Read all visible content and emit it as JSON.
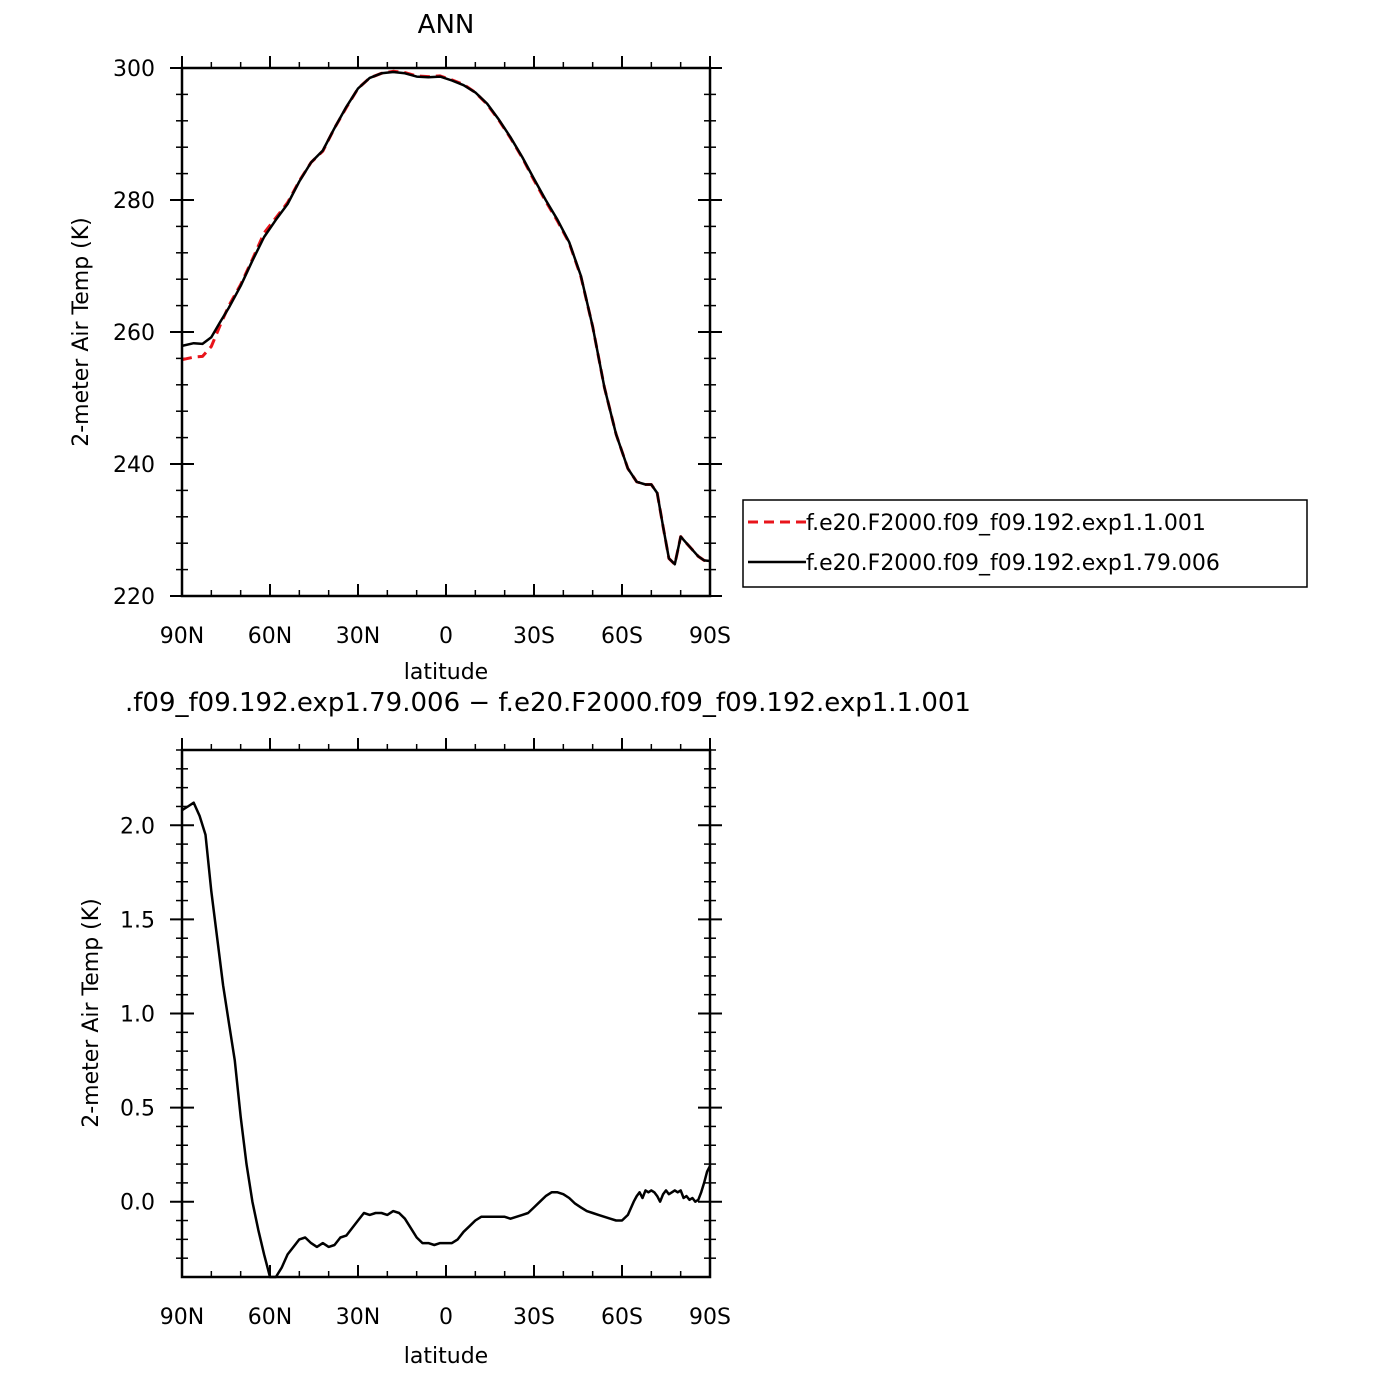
{
  "colors": {
    "exp_001": "#e8141b",
    "exp_006": "#000000",
    "axis": "#000000",
    "background": "#ffffff"
  },
  "chart_data": [
    {
      "type": "line",
      "title": "ANN",
      "xlabel": "latitude",
      "ylabel": "2-meter Air Temp (K)",
      "xlim": [
        -90,
        90
      ],
      "ylim": [
        220,
        300
      ],
      "x_ticks": [
        -90,
        -60,
        -30,
        0,
        30,
        60,
        90
      ],
      "x_tick_labels": [
        "90N",
        "60N",
        "30N",
        "0",
        "30S",
        "60S",
        "90S"
      ],
      "y_ticks": [
        220,
        240,
        260,
        280,
        300
      ],
      "y_tick_labels": [
        "220",
        "240",
        "260",
        "280",
        "300"
      ],
      "grid": false,
      "legend_position": "right",
      "series": [
        {
          "name": "f.e20.F2000.f09_f09.192.exp1.1.001",
          "style": "dashed",
          "color": "#e8141b",
          "x": [
            -90,
            -86,
            -83,
            -80,
            -77,
            -74,
            -70,
            -66,
            -62,
            -58,
            -54,
            -50,
            -46,
            -42,
            -38,
            -34,
            -30,
            -26,
            -22,
            -18,
            -14,
            -10,
            -6,
            -2,
            2,
            6,
            10,
            14,
            18,
            22,
            26,
            30,
            34,
            38,
            42,
            46,
            50,
            54,
            58,
            62,
            65,
            68,
            70,
            72,
            74,
            76,
            78,
            80,
            82,
            84,
            86,
            88,
            90
          ],
          "y": [
            255.8,
            256.2,
            256.3,
            257.8,
            261.0,
            264.0,
            267.2,
            271.0,
            275.0,
            277.3,
            279.6,
            282.9,
            285.7,
            287.4,
            290.9,
            294.0,
            296.9,
            298.5,
            299.2,
            299.5,
            299.3,
            298.8,
            298.7,
            298.8,
            298.2,
            297.5,
            296.3,
            294.5,
            292.1,
            289.4,
            286.4,
            283.0,
            279.8,
            276.8,
            273.5,
            268.4,
            260.8,
            251.6,
            244.5,
            239.3,
            237.3,
            236.9,
            236.9,
            235.6,
            230.5,
            225.7,
            224.8,
            229.0,
            228.0,
            227.0,
            226.0,
            225.4,
            225.3
          ]
        },
        {
          "name": "f.e20.F2000.f09_f09.192.exp1.79.006",
          "style": "solid",
          "color": "#000000",
          "x": [
            -90,
            -86,
            -83,
            -80,
            -77,
            -74,
            -70,
            -66,
            -62,
            -58,
            -54,
            -50,
            -46,
            -42,
            -38,
            -34,
            -30,
            -26,
            -22,
            -18,
            -14,
            -10,
            -6,
            -2,
            2,
            6,
            10,
            14,
            18,
            22,
            26,
            30,
            34,
            38,
            42,
            46,
            50,
            54,
            58,
            62,
            65,
            68,
            70,
            72,
            74,
            76,
            78,
            80,
            82,
            84,
            86,
            88,
            90
          ],
          "y": [
            257.9,
            258.3,
            258.2,
            259.2,
            261.5,
            263.7,
            267.0,
            270.8,
            274.4,
            277.0,
            279.4,
            282.8,
            285.7,
            287.5,
            290.9,
            294.1,
            296.9,
            298.5,
            299.2,
            299.4,
            299.2,
            298.7,
            298.6,
            298.7,
            298.1,
            297.4,
            296.3,
            294.6,
            292.2,
            289.5,
            286.5,
            283.2,
            280.0,
            277.0,
            273.6,
            268.5,
            260.8,
            251.6,
            244.5,
            239.3,
            237.3,
            236.9,
            236.9,
            235.6,
            230.5,
            225.7,
            224.8,
            229.0,
            228.0,
            227.0,
            226.0,
            225.4,
            225.3
          ]
        }
      ]
    },
    {
      "type": "line",
      "title": ".f09_f09.192.exp1.79.006 − f.e20.F2000.f09_f09.192.exp1.1.001",
      "xlabel": "latitude",
      "ylabel": "2-meter Air Temp (K)",
      "xlim": [
        -90,
        90
      ],
      "ylim": [
        -0.4,
        2.4
      ],
      "x_ticks": [
        -90,
        -60,
        -30,
        0,
        30,
        60,
        90
      ],
      "x_tick_labels": [
        "90N",
        "60N",
        "30N",
        "0",
        "30S",
        "60S",
        "90S"
      ],
      "y_ticks": [
        0,
        0.5,
        1,
        1.5,
        2
      ],
      "y_tick_labels": [
        "0.0",
        "0.5",
        "1.0",
        "1.5",
        "2.0"
      ],
      "grid": false,
      "series": [
        {
          "style": "solid",
          "color": "#000000",
          "x": [
            -90,
            -88,
            -86,
            -84,
            -82,
            -80,
            -78,
            -76,
            -74,
            -72,
            -70,
            -68,
            -66,
            -64,
            -62,
            -60,
            -58,
            -56,
            -54,
            -52,
            -50,
            -48,
            -46,
            -44,
            -42,
            -40,
            -38,
            -36,
            -34,
            -32,
            -30,
            -28,
            -26,
            -24,
            -22,
            -20,
            -18,
            -16,
            -14,
            -12,
            -10,
            -8,
            -6,
            -4,
            -2,
            0,
            2,
            4,
            6,
            8,
            10,
            12,
            14,
            16,
            18,
            20,
            22,
            24,
            26,
            28,
            30,
            32,
            34,
            36,
            38,
            40,
            42,
            44,
            46,
            48,
            50,
            52,
            54,
            56,
            58,
            60,
            62,
            64,
            65,
            66,
            67,
            68,
            69,
            70,
            71,
            72,
            73,
            74,
            75,
            76,
            77,
            78,
            79,
            80,
            81,
            82,
            83,
            84,
            85,
            86,
            87,
            88,
            89,
            90
          ],
          "y": [
            2.08,
            2.1,
            2.12,
            2.05,
            1.95,
            1.65,
            1.4,
            1.15,
            0.95,
            0.75,
            0.45,
            0.2,
            0.0,
            -0.15,
            -0.28,
            -0.4,
            -0.4,
            -0.35,
            -0.28,
            -0.24,
            -0.2,
            -0.19,
            -0.22,
            -0.24,
            -0.22,
            -0.24,
            -0.23,
            -0.19,
            -0.18,
            -0.14,
            -0.1,
            -0.06,
            -0.07,
            -0.06,
            -0.06,
            -0.07,
            -0.05,
            -0.06,
            -0.09,
            -0.14,
            -0.19,
            -0.22,
            -0.22,
            -0.23,
            -0.22,
            -0.22,
            -0.22,
            -0.2,
            -0.16,
            -0.13,
            -0.1,
            -0.08,
            -0.08,
            -0.08,
            -0.08,
            -0.08,
            -0.09,
            -0.08,
            -0.07,
            -0.06,
            -0.03,
            0.0,
            0.03,
            0.05,
            0.05,
            0.04,
            0.02,
            -0.01,
            -0.03,
            -0.05,
            -0.06,
            -0.07,
            -0.08,
            -0.09,
            -0.1,
            -0.1,
            -0.07,
            0.0,
            0.03,
            0.05,
            0.02,
            0.06,
            0.05,
            0.06,
            0.05,
            0.03,
            0.0,
            0.04,
            0.06,
            0.04,
            0.05,
            0.06,
            0.05,
            0.06,
            0.02,
            0.03,
            0.01,
            0.02,
            0.0,
            0.01,
            0.05,
            0.1,
            0.16,
            0.19
          ]
        }
      ]
    }
  ]
}
